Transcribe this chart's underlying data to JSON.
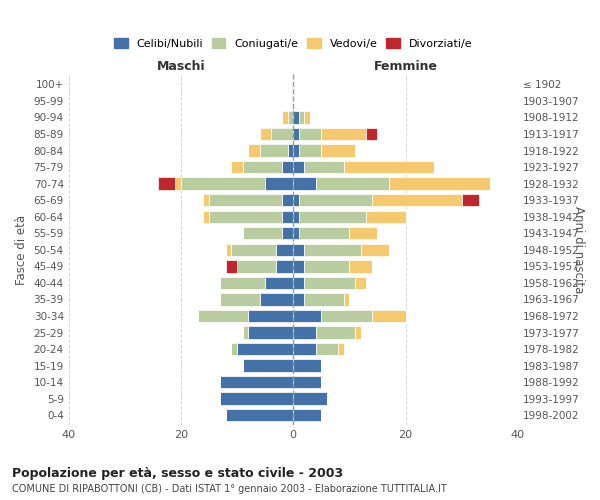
{
  "age_groups": [
    "0-4",
    "5-9",
    "10-14",
    "15-19",
    "20-24",
    "25-29",
    "30-34",
    "35-39",
    "40-44",
    "45-49",
    "50-54",
    "55-59",
    "60-64",
    "65-69",
    "70-74",
    "75-79",
    "80-84",
    "85-89",
    "90-94",
    "95-99",
    "100+"
  ],
  "birth_years": [
    "1998-2002",
    "1993-1997",
    "1988-1992",
    "1983-1987",
    "1978-1982",
    "1973-1977",
    "1968-1972",
    "1963-1967",
    "1958-1962",
    "1953-1957",
    "1948-1952",
    "1943-1947",
    "1938-1942",
    "1933-1937",
    "1928-1932",
    "1923-1927",
    "1918-1922",
    "1913-1917",
    "1908-1912",
    "1903-1907",
    "≤ 1902"
  ],
  "maschi": {
    "celibi": [
      12,
      13,
      13,
      9,
      10,
      8,
      8,
      6,
      5,
      3,
      3,
      2,
      2,
      2,
      5,
      2,
      1,
      0,
      0,
      0,
      0
    ],
    "coniugati": [
      0,
      0,
      0,
      0,
      1,
      1,
      9,
      7,
      8,
      7,
      8,
      7,
      13,
      13,
      15,
      7,
      5,
      4,
      1,
      0,
      0
    ],
    "vedovi": [
      0,
      0,
      0,
      0,
      0,
      0,
      0,
      0,
      0,
      0,
      1,
      0,
      1,
      1,
      1,
      2,
      2,
      2,
      1,
      0,
      0
    ],
    "divorziati": [
      0,
      0,
      0,
      0,
      0,
      0,
      0,
      0,
      0,
      2,
      0,
      0,
      0,
      0,
      3,
      0,
      0,
      0,
      0,
      0,
      0
    ]
  },
  "femmine": {
    "nubili": [
      5,
      6,
      5,
      5,
      4,
      4,
      5,
      2,
      2,
      2,
      2,
      1,
      1,
      1,
      4,
      2,
      1,
      1,
      1,
      0,
      0
    ],
    "coniugate": [
      0,
      0,
      0,
      0,
      4,
      7,
      9,
      7,
      9,
      8,
      10,
      9,
      12,
      13,
      13,
      7,
      4,
      4,
      1,
      0,
      0
    ],
    "vedove": [
      0,
      0,
      0,
      0,
      1,
      1,
      6,
      1,
      2,
      4,
      5,
      5,
      7,
      16,
      18,
      16,
      6,
      8,
      1,
      0,
      0
    ],
    "divorziate": [
      0,
      0,
      0,
      0,
      0,
      0,
      0,
      0,
      0,
      0,
      0,
      0,
      0,
      3,
      0,
      0,
      0,
      2,
      0,
      0,
      0
    ]
  },
  "colors": {
    "celibi_nubili": "#4472a8",
    "coniugati": "#b8cca0",
    "vedovi": "#f5c96e",
    "divorziati": "#c0272d"
  },
  "title": "Popolazione per età, sesso e stato civile - 2003",
  "subtitle": "COMUNE DI RIPABOTTONI (CB) - Dati ISTAT 1° gennaio 2003 - Elaborazione TUTTITALIA.IT",
  "xlabel_left": "Maschi",
  "xlabel_right": "Femmine",
  "ylabel_left": "Fasce di età",
  "ylabel_right": "Anni di nascita",
  "xlim": 40,
  "legend_labels": [
    "Celibi/Nubili",
    "Coniugati/e",
    "Vedovi/e",
    "Divorziati/e"
  ],
  "background_color": "#ffffff",
  "grid_color": "#cccccc"
}
